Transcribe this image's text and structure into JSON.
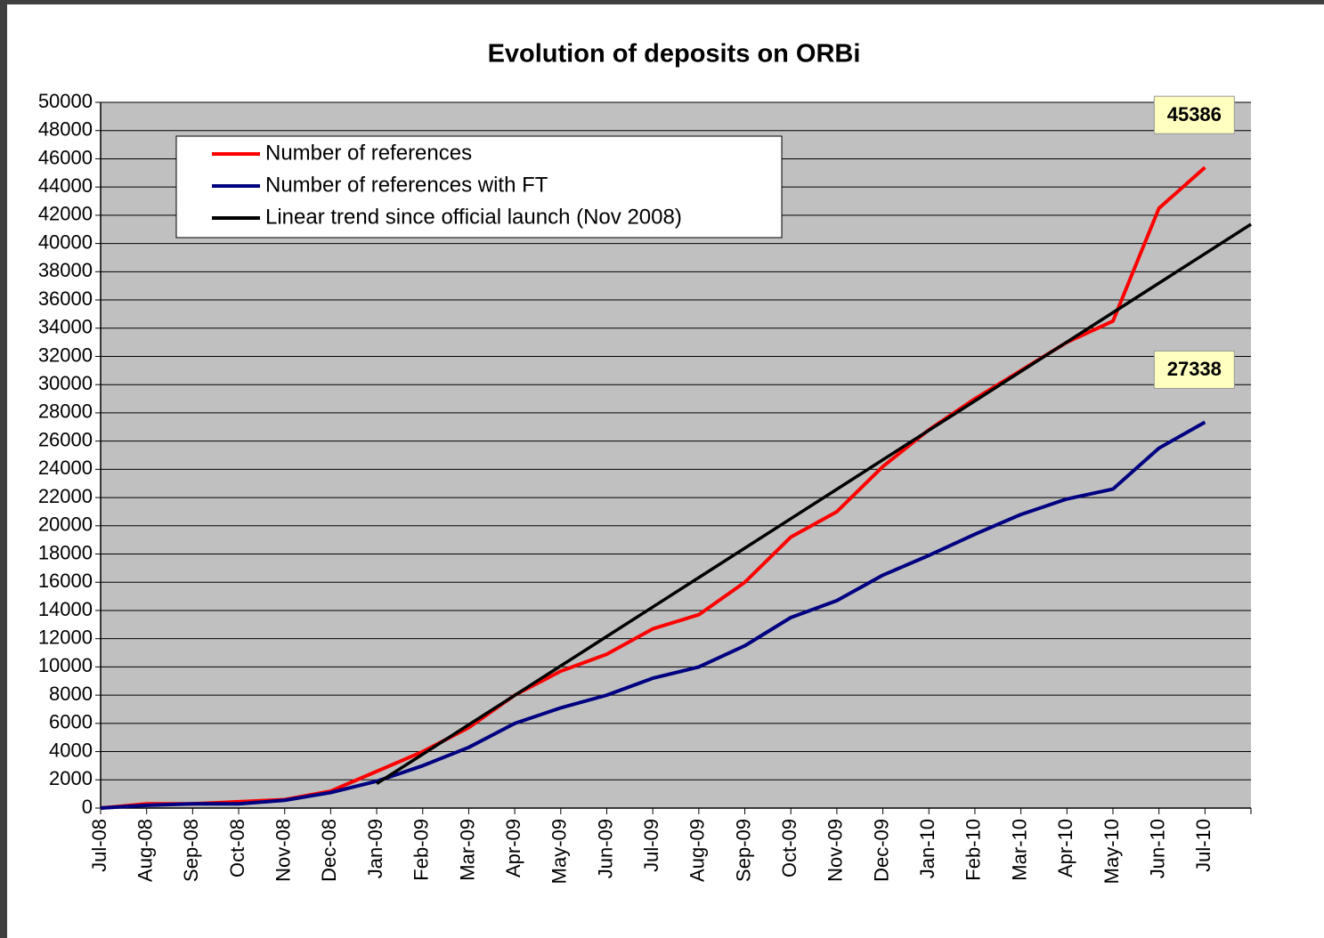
{
  "chart_data": {
    "type": "line",
    "title": "Evolution of  deposits on ORBi",
    "categories": [
      "Jul-08",
      "Aug-08",
      "Sep-08",
      "Oct-08",
      "Nov-08",
      "Dec-08",
      "Jan-09",
      "Feb-09",
      "Mar-09",
      "Apr-09",
      "May-09",
      "Jun-09",
      "Jul-09",
      "Aug-09",
      "Sep-09",
      "Oct-09",
      "Nov-09",
      "Dec-09",
      "Jan-10",
      "Feb-10",
      "Mar-10",
      "Apr-10",
      "May-10",
      "Jun-10",
      "Jul-10",
      null
    ],
    "series": [
      {
        "name": "Number of references",
        "color": "#ff0000",
        "end_label": true,
        "values": [
          0,
          300,
          300,
          450,
          600,
          1200,
          2600,
          4000,
          5700,
          8000,
          9700,
          10900,
          12700,
          13700,
          16000,
          19200,
          21000,
          24200,
          26800,
          29000,
          31000,
          33000,
          34500,
          42500,
          45386,
          null
        ]
      },
      {
        "name": "Number of references with FT",
        "color": "#000080",
        "end_label": true,
        "values": [
          0,
          200,
          300,
          300,
          550,
          1100,
          1900,
          3000,
          4300,
          6000,
          7100,
          8000,
          9200,
          10000,
          11500,
          13500,
          14700,
          16500,
          17900,
          19400,
          20800,
          21900,
          22600,
          25500,
          27338,
          null
        ]
      },
      {
        "name": "Linear trend since official launch (Nov 2008)",
        "color": "#000000",
        "end_label": false,
        "values": [
          null,
          null,
          null,
          null,
          null,
          null,
          1730,
          3816,
          5902,
          7988,
          10074,
          12160,
          14246,
          16332,
          18418,
          20504,
          22590,
          24676,
          26762,
          28848,
          30934,
          33020,
          35106,
          37192,
          39278,
          41364
        ]
      }
    ],
    "ylim": [
      0,
      50000
    ],
    "yticks": [
      0,
      2000,
      4000,
      6000,
      8000,
      10000,
      12000,
      14000,
      16000,
      18000,
      20000,
      22000,
      24000,
      26000,
      28000,
      30000,
      32000,
      34000,
      36000,
      38000,
      40000,
      42000,
      44000,
      46000,
      48000,
      50000
    ],
    "grid": true,
    "plot_background": "#c0c0c0",
    "legend": "upper left"
  }
}
